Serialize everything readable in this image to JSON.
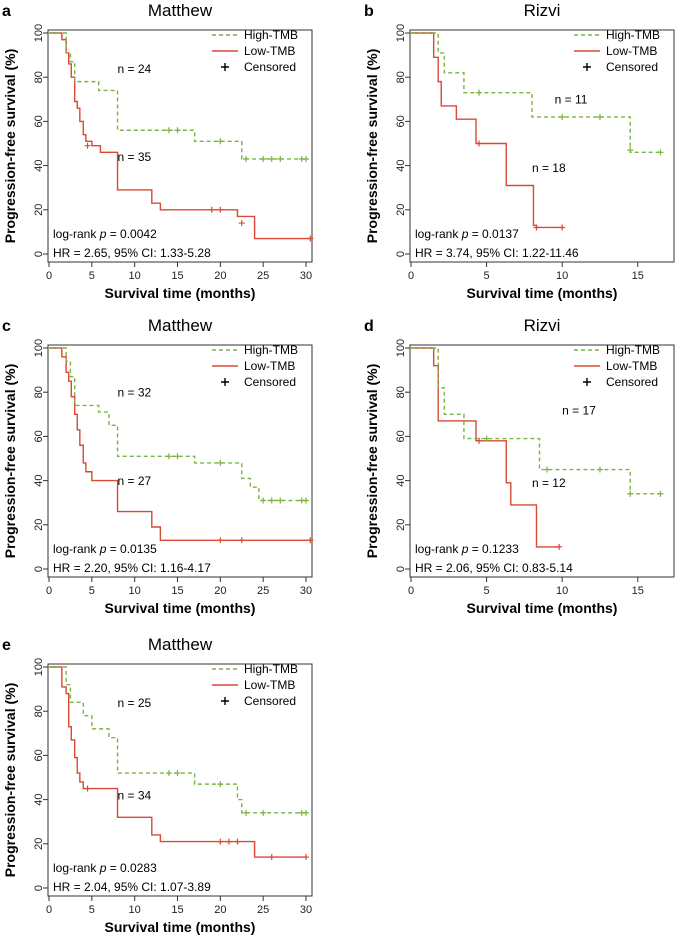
{
  "colors": {
    "high": "#7cb342",
    "low": "#d84a35",
    "axis": "#333333",
    "censor": "#000000"
  },
  "legend": {
    "high": "High-TMB",
    "low": "Low-TMB",
    "censored": "Censored"
  },
  "chart_data": [
    {
      "type": "line",
      "panel": "a",
      "title": "Matthew",
      "xlabel": "Survival time (months)",
      "ylabel": "Progression-free survival (%)",
      "xlim": [
        0,
        30
      ],
      "ylim": [
        0,
        100
      ],
      "xticks": [
        0,
        5,
        10,
        15,
        20,
        25,
        30
      ],
      "yticks": [
        0,
        20,
        40,
        60,
        80,
        100
      ],
      "logrank_prefix": "log-rank ",
      "logrank_p_symbol": "p",
      "logrank_value": " = 0.0042",
      "hr_text": "HR = 2.65, 95% CI: 1.33-5.28",
      "series": [
        {
          "name": "High-TMB",
          "n_label": "n =  24",
          "x": [
            0,
            2,
            2.5,
            3,
            5,
            5.8,
            8,
            17,
            22.5,
            30
          ],
          "y": [
            100,
            91,
            87,
            78,
            78,
            74,
            56,
            51,
            43,
            43
          ],
          "censors": [
            [
              14,
              56
            ],
            [
              15,
              56
            ],
            [
              20,
              51
            ],
            [
              23,
              43
            ],
            [
              25,
              43
            ],
            [
              26,
              43
            ],
            [
              27,
              43
            ],
            [
              29.5,
              43
            ],
            [
              30,
              43
            ]
          ],
          "n_at": [
            8,
            82
          ]
        },
        {
          "name": "Low-TMB",
          "n_label": "n = 35",
          "x": [
            0,
            1.5,
            2,
            2.3,
            2.6,
            3,
            3.3,
            3.6,
            4,
            4.3,
            5,
            6,
            8,
            12,
            13,
            22,
            24,
            30.5
          ],
          "y": [
            100,
            97,
            91,
            86,
            80,
            69,
            66,
            60,
            54,
            51,
            49,
            46,
            29,
            23,
            20,
            17,
            7,
            7
          ],
          "censors": [
            [
              4.5,
              49
            ],
            [
              19,
              20
            ],
            [
              20,
              20
            ],
            [
              22.5,
              14
            ],
            [
              30.5,
              7
            ]
          ],
          "n_at": [
            8,
            42
          ]
        }
      ]
    },
    {
      "type": "line",
      "panel": "b",
      "title": "Rizvi",
      "xlabel": "Survival time (months)",
      "ylabel": "Progression-free survival (%)",
      "xlim": [
        0,
        17
      ],
      "ylim": [
        0,
        100
      ],
      "xticks": [
        0,
        5,
        10,
        15
      ],
      "yticks": [
        0,
        20,
        40,
        60,
        80,
        100
      ],
      "logrank_prefix": "log-rank ",
      "logrank_p_symbol": "p",
      "logrank_value": " = 0.0137",
      "hr_text": "HR = 3.74, 95% CI: 1.22-11.46",
      "series": [
        {
          "name": "High-TMB",
          "n_label": "n = 11",
          "x": [
            0,
            1.8,
            2.2,
            3.5,
            8,
            14.5,
            16.5
          ],
          "y": [
            100,
            91,
            82,
            73,
            62,
            46,
            46
          ],
          "censors": [
            [
              4.5,
              73
            ],
            [
              10,
              62
            ],
            [
              12.5,
              62
            ],
            [
              14.5,
              47
            ],
            [
              16.5,
              46
            ]
          ],
          "n_at": [
            9.5,
            68
          ]
        },
        {
          "name": "Low-TMB",
          "n_label": "n = 18",
          "x": [
            0,
            1.5,
            1.8,
            2,
            3,
            4.3,
            6.3,
            8.1,
            8.3,
            10
          ],
          "y": [
            100,
            89,
            78,
            67,
            61,
            50,
            31,
            13,
            12,
            12
          ],
          "censors": [
            [
              4.5,
              50
            ],
            [
              8.3,
              12
            ],
            [
              10,
              12
            ]
          ],
          "n_at": [
            8,
            37
          ]
        }
      ]
    },
    {
      "type": "line",
      "panel": "c",
      "title": "Matthew",
      "xlabel": "Survival time (months)",
      "ylabel": "Progression-free survival (%)",
      "xlim": [
        0,
        30
      ],
      "ylim": [
        0,
        100
      ],
      "xticks": [
        0,
        5,
        10,
        15,
        20,
        25,
        30
      ],
      "yticks": [
        0,
        20,
        40,
        60,
        80,
        100
      ],
      "logrank_prefix": "log-rank ",
      "logrank_p_symbol": "p",
      "logrank_value": " = 0.0135",
      "hr_text": "HR = 2.20, 95% CI: 1.16-4.17",
      "series": [
        {
          "name": "High-TMB",
          "n_label": "n =  32",
          "x": [
            0,
            2,
            2.5,
            3,
            5,
            5.8,
            7,
            8,
            17,
            22.5,
            23.5,
            24.5,
            30
          ],
          "y": [
            100,
            94,
            87,
            74,
            74,
            71,
            65,
            51,
            48,
            41,
            37,
            31,
            31
          ],
          "censors": [
            [
              14,
              51
            ],
            [
              15,
              51
            ],
            [
              20,
              48
            ],
            [
              25,
              31
            ],
            [
              26,
              31
            ],
            [
              27,
              31
            ],
            [
              29.5,
              31
            ],
            [
              30,
              31
            ]
          ],
          "n_at": [
            8,
            78
          ]
        },
        {
          "name": "Low-TMB",
          "n_label": "n = 27",
          "x": [
            0,
            1.5,
            2,
            2.3,
            2.6,
            3,
            3.3,
            3.6,
            4,
            4.3,
            5,
            8,
            12,
            13,
            30.5
          ],
          "y": [
            100,
            96,
            89,
            85,
            78,
            70,
            63,
            56,
            48,
            44,
            40,
            26,
            19,
            13,
            13
          ],
          "censors": [
            [
              20,
              13
            ],
            [
              22.5,
              13
            ],
            [
              30.5,
              13
            ]
          ],
          "n_at": [
            8,
            38
          ]
        }
      ]
    },
    {
      "type": "line",
      "panel": "d",
      "title": "Rizvi",
      "xlabel": "Survival time (months)",
      "ylabel": "Progression-free survival (%)",
      "xlim": [
        0,
        17
      ],
      "ylim": [
        0,
        100
      ],
      "xticks": [
        0,
        5,
        10,
        15
      ],
      "yticks": [
        0,
        20,
        40,
        60,
        80,
        100
      ],
      "logrank_prefix": "log-rank ",
      "logrank_p_symbol": "p",
      "logrank_value": " = 0.1233",
      "hr_text": "HR = 2.06, 95% CI: 0.83-5.14",
      "series": [
        {
          "name": "High-TMB",
          "n_label": "n = 17",
          "x": [
            0,
            1.8,
            2.2,
            3.5,
            8,
            8.5,
            14.5,
            16.5
          ],
          "y": [
            100,
            82,
            70,
            59,
            59,
            45,
            34,
            34
          ],
          "censors": [
            [
              5,
              59
            ],
            [
              9,
              45
            ],
            [
              12.5,
              45
            ],
            [
              14.5,
              34
            ],
            [
              16.5,
              34
            ]
          ],
          "n_at": [
            10,
            70
          ]
        },
        {
          "name": "Low-TMB",
          "n_label": "n = 12",
          "x": [
            0,
            1.5,
            1.8,
            4.3,
            6.3,
            6.6,
            8.3,
            9.8
          ],
          "y": [
            100,
            92,
            67,
            58,
            39,
            29,
            10,
            10
          ],
          "censors": [
            [
              4.5,
              58
            ],
            [
              9.8,
              10
            ]
          ],
          "n_at": [
            8,
            37
          ]
        }
      ]
    },
    {
      "type": "line",
      "panel": "e",
      "title": "Matthew",
      "xlabel": "Survival time (months)",
      "ylabel": "Progression-free survival (%)",
      "xlim": [
        0,
        30
      ],
      "ylim": [
        0,
        100
      ],
      "xticks": [
        0,
        5,
        10,
        15,
        20,
        25,
        30
      ],
      "yticks": [
        0,
        20,
        40,
        60,
        80,
        100
      ],
      "logrank_prefix": "log-rank ",
      "logrank_p_symbol": "p",
      "logrank_value": " = 0.0283",
      "hr_text": "HR = 2.04, 95% CI: 1.07-3.89",
      "series": [
        {
          "name": "High-TMB",
          "n_label": "n =  25",
          "x": [
            0,
            2,
            2.5,
            4,
            5,
            5.8,
            7,
            8,
            17,
            22,
            22.5,
            30
          ],
          "y": [
            100,
            92,
            84,
            78,
            72,
            72,
            68,
            52,
            47,
            40,
            34,
            34
          ],
          "censors": [
            [
              14,
              52
            ],
            [
              15,
              52
            ],
            [
              20,
              47
            ],
            [
              23,
              34
            ],
            [
              25,
              34
            ],
            [
              29.5,
              34
            ],
            [
              30,
              34
            ]
          ],
          "n_at": [
            8,
            82
          ]
        },
        {
          "name": "Low-TMB",
          "n_label": "n = 34",
          "x": [
            0,
            1.5,
            2,
            2.3,
            2.6,
            3,
            3.3,
            3.6,
            4,
            8,
            12,
            13,
            22,
            24,
            30
          ],
          "y": [
            100,
            91,
            88,
            73,
            67,
            59,
            52,
            48,
            45,
            32,
            24,
            21,
            21,
            14,
            14
          ],
          "censors": [
            [
              4.5,
              45
            ],
            [
              20,
              21
            ],
            [
              21,
              21
            ],
            [
              22,
              21
            ],
            [
              26,
              14
            ],
            [
              30,
              14
            ]
          ],
          "n_at": [
            8,
            40
          ]
        }
      ]
    }
  ]
}
